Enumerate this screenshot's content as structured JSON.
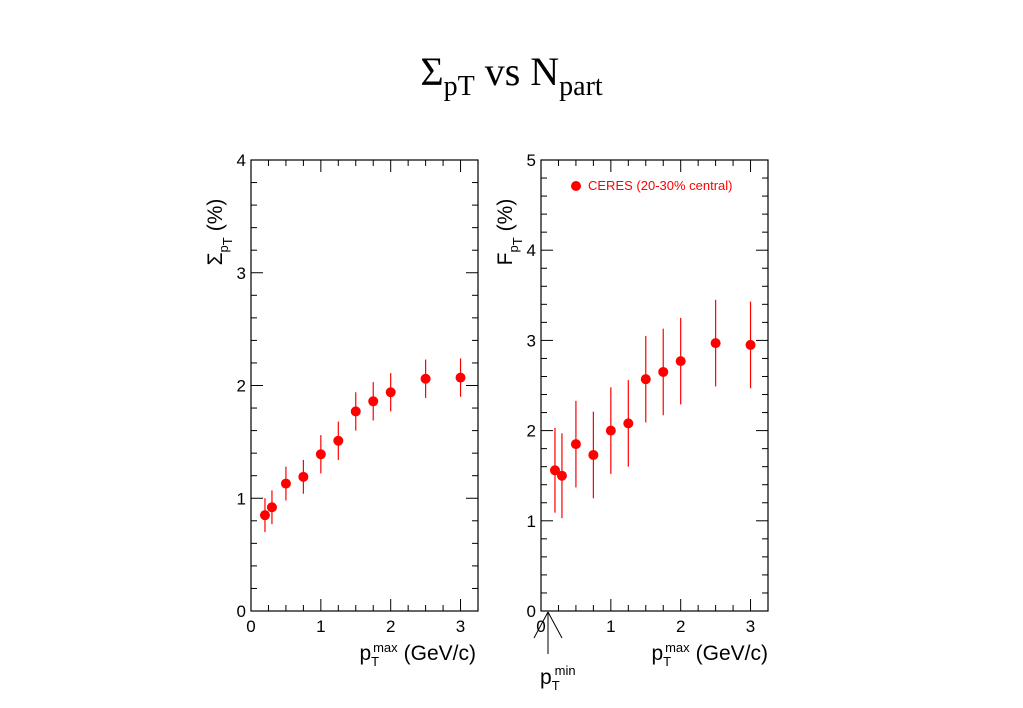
{
  "slide": {
    "title_main": "Σ",
    "title_main_sub": "pT",
    "title_mid": " vs N",
    "title_mid_sub": "part"
  },
  "colors": {
    "marker": "#ff0000",
    "axis": "#000000"
  },
  "annotation": {
    "pt_min_label": "p",
    "pt_min_sub": "T",
    "pt_min_sup": "min"
  },
  "chart_data": [
    {
      "type": "scatter",
      "ylabel_symbol": "Σ",
      "ylabel_sub": "p",
      "ylabel_subsub": "T",
      "ylabel_unit": "(%)",
      "xlabel_symbol": "p",
      "xlabel_sub": "T",
      "xlabel_sup": "max",
      "xlabel_unit": "(GeV/c)",
      "xlim": [
        0,
        3.25
      ],
      "ylim": [
        0,
        4
      ],
      "xticks": [
        "0",
        "1",
        "2",
        "3"
      ],
      "yticks": [
        "0",
        "1",
        "2",
        "3",
        "4"
      ],
      "series": [
        {
          "x": [
            0.2,
            0.3,
            0.5,
            0.75,
            1.0,
            1.25,
            1.5,
            1.75,
            2.0,
            2.5,
            3.0
          ],
          "y": [
            0.85,
            0.92,
            1.13,
            1.19,
            1.39,
            1.51,
            1.77,
            1.86,
            1.94,
            2.06,
            2.07
          ],
          "err": [
            0.15,
            0.15,
            0.15,
            0.15,
            0.17,
            0.17,
            0.17,
            0.17,
            0.17,
            0.17,
            0.17
          ]
        }
      ]
    },
    {
      "type": "scatter",
      "ylabel_symbol": "F",
      "ylabel_sub": "p",
      "ylabel_subsub": "T",
      "ylabel_unit": "(%)",
      "xlabel_symbol": "p",
      "xlabel_sub": "T",
      "xlabel_sup": "max",
      "xlabel_unit": "(GeV/c)",
      "xlim": [
        0,
        3.25
      ],
      "ylim": [
        0,
        5
      ],
      "xticks": [
        "0",
        "1",
        "2",
        "3"
      ],
      "yticks": [
        "0",
        "1",
        "2",
        "3",
        "4",
        "5"
      ],
      "legend": "top-right",
      "series": [
        {
          "name": "CERES (20-30% central)",
          "x": [
            0.2,
            0.3,
            0.5,
            0.75,
            1.0,
            1.25,
            1.5,
            1.75,
            2.0,
            2.5,
            3.0
          ],
          "y": [
            1.56,
            1.5,
            1.85,
            1.73,
            2.0,
            2.08,
            2.57,
            2.65,
            2.77,
            2.97,
            2.95
          ],
          "err": [
            0.47,
            0.47,
            0.48,
            0.48,
            0.48,
            0.48,
            0.48,
            0.48,
            0.48,
            0.48,
            0.48
          ]
        }
      ]
    }
  ]
}
